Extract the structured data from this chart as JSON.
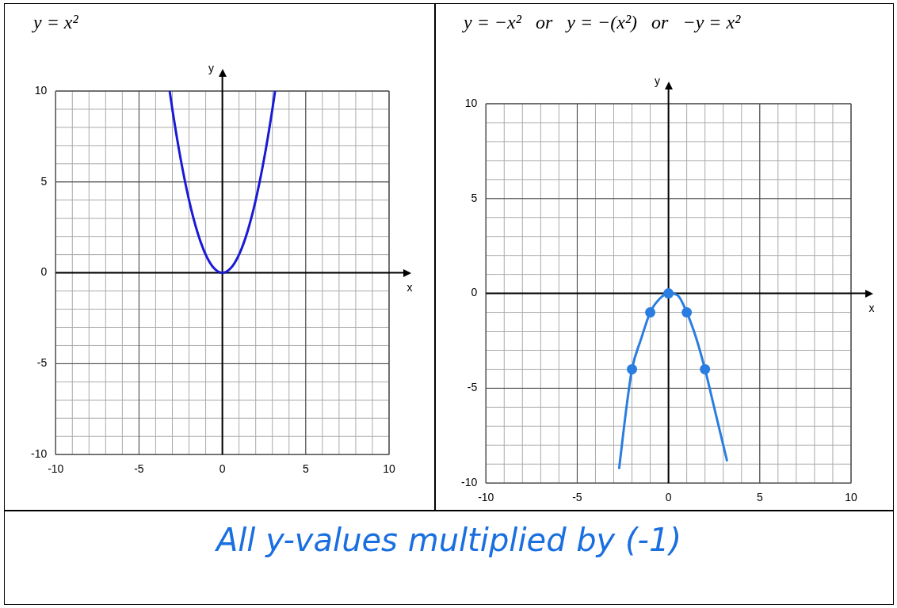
{
  "chart_data": [
    {
      "type": "line",
      "title": "y = x²",
      "xlabel": "x",
      "ylabel": "y",
      "xlim": [
        -10,
        10
      ],
      "ylim": [
        -10,
        10
      ],
      "xticks": [
        -10,
        -5,
        0,
        5,
        10
      ],
      "yticks": [
        -10,
        -5,
        0,
        5,
        10
      ],
      "grid": true,
      "marker": "none",
      "series": [
        {
          "color": "#1a1ad6",
          "x": [
            -3.16,
            -3,
            -2.5,
            -2,
            -1.5,
            -1,
            -0.5,
            0,
            0.5,
            1,
            1.5,
            2,
            2.5,
            3,
            3.16
          ],
          "values": [
            10,
            9,
            6.25,
            4,
            2.25,
            1,
            0.25,
            0,
            0.25,
            1,
            2.25,
            4,
            6.25,
            9,
            10
          ]
        }
      ]
    },
    {
      "type": "line",
      "title": "y = −x²   or   y = −(x²)   or   −y = x²",
      "xlabel": "x",
      "ylabel": "y",
      "xlim": [
        -10,
        10
      ],
      "ylim": [
        -10,
        10
      ],
      "xticks": [
        -10,
        -5,
        0,
        5,
        10
      ],
      "yticks": [
        -10,
        -5,
        0,
        5,
        10
      ],
      "grid": true,
      "series": [
        {
          "type": "line",
          "marker": "none",
          "color": "#2a7de1",
          "x": [
            -2.7,
            -2.3,
            -2,
            -1.5,
            -1,
            -0.5,
            0,
            0.5,
            1,
            1.5,
            2,
            2.5,
            3.2
          ],
          "values": [
            -9.2,
            -6,
            -4,
            -2.4,
            -1,
            -0.3,
            0,
            -0.1,
            -1,
            -2.3,
            -4,
            -6,
            -8.8
          ]
        },
        {
          "type": "scatter",
          "marker": "circle",
          "color": "#2a7de1",
          "x": [
            -2,
            -1,
            0,
            1,
            2
          ],
          "values": [
            -4,
            -1,
            0,
            -1,
            -4
          ]
        }
      ]
    },
    {
      "type": "other",
      "annotations": [
        "All y-values multiplied by (-1)"
      ]
    }
  ]
}
